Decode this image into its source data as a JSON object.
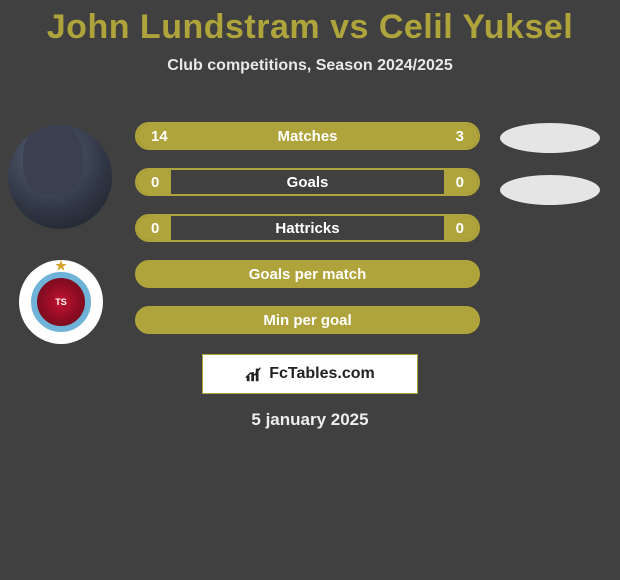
{
  "header": {
    "player1": "John Lundstram",
    "vs": "vs",
    "player2": "Celil Yuksel",
    "subtitle": "Club competitions, Season 2024/2025"
  },
  "colors": {
    "accent": "#afa43b",
    "background": "#404040",
    "text": "#ffffff",
    "brand_box_bg": "#ffffff",
    "brand_text": "#222222"
  },
  "stats": [
    {
      "label": "Matches",
      "left_value": "14",
      "right_value": "3",
      "left_pct": 82,
      "right_pct": 18,
      "type": "split"
    },
    {
      "label": "Goals",
      "left_value": "0",
      "right_value": "0",
      "left_pct": 10,
      "right_pct": 10,
      "type": "split"
    },
    {
      "label": "Hattricks",
      "left_value": "0",
      "right_value": "0",
      "left_pct": 10,
      "right_pct": 10,
      "type": "split"
    },
    {
      "label": "Goals per match",
      "type": "full"
    },
    {
      "label": "Min per goal",
      "type": "full"
    }
  ],
  "brand": {
    "text": "FcTables.com",
    "icon": "bar-chart-icon"
  },
  "date": "5 january 2025",
  "club": {
    "text": "TS"
  }
}
